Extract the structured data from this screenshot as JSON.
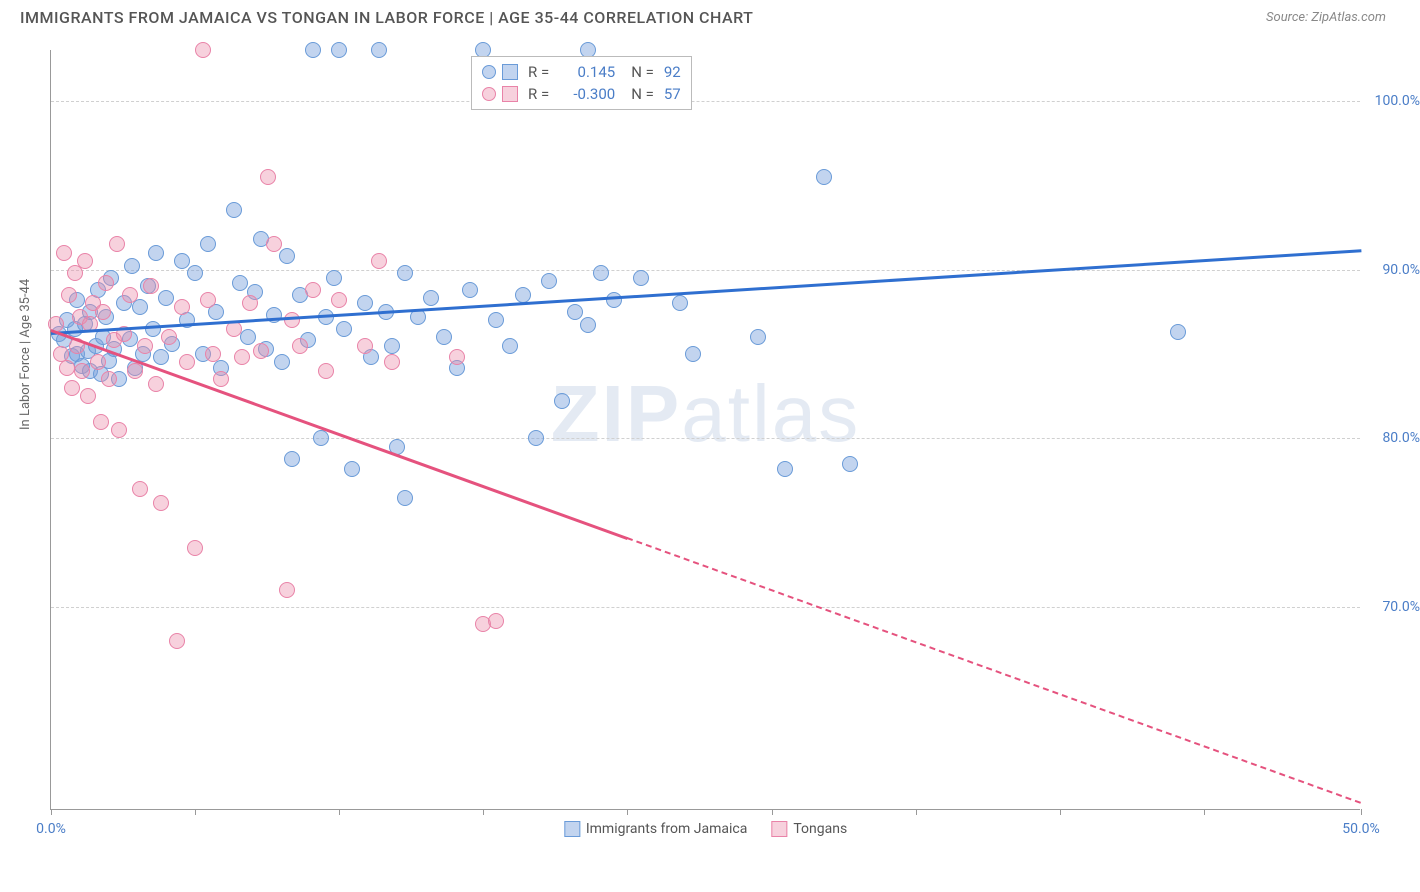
{
  "header": {
    "title": "IMMIGRANTS FROM JAMAICA VS TONGAN IN LABOR FORCE | AGE 35-44 CORRELATION CHART",
    "source": "Source: ZipAtlas.com"
  },
  "chart": {
    "type": "scatter",
    "y_axis_label": "In Labor Force | Age 35-44",
    "xlim": [
      0,
      50
    ],
    "ylim": [
      58,
      103
    ],
    "y_ticks": [
      70,
      80,
      90,
      100
    ],
    "y_tick_labels": [
      "70.0%",
      "80.0%",
      "90.0%",
      "100.0%"
    ],
    "x_ticks": [
      0,
      5.5,
      11,
      16.5,
      22,
      27.5,
      33,
      38.5,
      44,
      50
    ],
    "x_tick_labels_shown": {
      "0": "0.0%",
      "50": "50.0%"
    },
    "grid_color": "#d0d0d0",
    "background_color": "#ffffff",
    "axis_color": "#999999",
    "watermark": "ZIPatlas",
    "series": [
      {
        "name": "Immigrants from Jamaica",
        "marker_fill": "rgba(120,160,220,0.45)",
        "marker_stroke": "#6a9bd8",
        "trend_color": "#2f6fd0",
        "r_value": "0.145",
        "n_value": "92",
        "trend": {
          "x1": 0,
          "y1": 86.3,
          "x2": 50,
          "y2": 91.2,
          "dashed_from": null
        },
        "points": [
          [
            0.3,
            86.2
          ],
          [
            0.5,
            85.8
          ],
          [
            0.6,
            87.0
          ],
          [
            0.8,
            84.9
          ],
          [
            0.9,
            86.5
          ],
          [
            1.0,
            85.0
          ],
          [
            1.0,
            88.2
          ],
          [
            1.2,
            84.3
          ],
          [
            1.3,
            86.8
          ],
          [
            1.4,
            85.2
          ],
          [
            1.5,
            87.5
          ],
          [
            1.5,
            84.0
          ],
          [
            1.7,
            85.5
          ],
          [
            1.8,
            88.8
          ],
          [
            1.9,
            83.8
          ],
          [
            2.0,
            86.0
          ],
          [
            2.1,
            87.2
          ],
          [
            2.2,
            84.6
          ],
          [
            2.3,
            89.5
          ],
          [
            2.4,
            85.3
          ],
          [
            2.6,
            83.5
          ],
          [
            2.8,
            88.0
          ],
          [
            3.0,
            85.9
          ],
          [
            3.1,
            90.2
          ],
          [
            3.2,
            84.2
          ],
          [
            3.4,
            87.8
          ],
          [
            3.5,
            85.0
          ],
          [
            3.7,
            89.0
          ],
          [
            3.9,
            86.5
          ],
          [
            4.0,
            91.0
          ],
          [
            4.2,
            84.8
          ],
          [
            4.4,
            88.3
          ],
          [
            4.6,
            85.6
          ],
          [
            5.0,
            90.5
          ],
          [
            5.2,
            87.0
          ],
          [
            5.5,
            89.8
          ],
          [
            5.8,
            85.0
          ],
          [
            6.0,
            91.5
          ],
          [
            6.3,
            87.5
          ],
          [
            6.5,
            84.2
          ],
          [
            7.0,
            93.5
          ],
          [
            7.2,
            89.2
          ],
          [
            7.5,
            86.0
          ],
          [
            7.8,
            88.7
          ],
          [
            8.0,
            91.8
          ],
          [
            8.2,
            85.3
          ],
          [
            8.5,
            87.3
          ],
          [
            8.8,
            84.5
          ],
          [
            9.0,
            90.8
          ],
          [
            9.2,
            78.8
          ],
          [
            9.5,
            88.5
          ],
          [
            9.8,
            85.8
          ],
          [
            10.0,
            103.0
          ],
          [
            10.3,
            80.0
          ],
          [
            10.5,
            87.2
          ],
          [
            10.8,
            89.5
          ],
          [
            11.0,
            103.0
          ],
          [
            11.2,
            86.5
          ],
          [
            11.5,
            78.2
          ],
          [
            12.0,
            88.0
          ],
          [
            12.2,
            84.8
          ],
          [
            12.5,
            103.0
          ],
          [
            12.8,
            87.5
          ],
          [
            13.0,
            85.5
          ],
          [
            13.2,
            79.5
          ],
          [
            13.5,
            89.8
          ],
          [
            14.0,
            87.2
          ],
          [
            14.5,
            88.3
          ],
          [
            15.0,
            86.0
          ],
          [
            15.5,
            84.2
          ],
          [
            16.0,
            88.8
          ],
          [
            16.5,
            103.0
          ],
          [
            17.0,
            87.0
          ],
          [
            17.5,
            85.5
          ],
          [
            18.0,
            88.5
          ],
          [
            18.5,
            80.0
          ],
          [
            19.0,
            89.3
          ],
          [
            19.5,
            82.2
          ],
          [
            20.0,
            87.5
          ],
          [
            20.5,
            86.7
          ],
          [
            21.0,
            89.8
          ],
          [
            21.5,
            88.2
          ],
          [
            22.5,
            89.5
          ],
          [
            24.0,
            88.0
          ],
          [
            24.5,
            85.0
          ],
          [
            27.0,
            86.0
          ],
          [
            28.0,
            78.2
          ],
          [
            29.5,
            95.5
          ],
          [
            30.5,
            78.5
          ],
          [
            43.0,
            86.3
          ],
          [
            20.5,
            103.0
          ],
          [
            13.5,
            76.5
          ]
        ]
      },
      {
        "name": "Tongans",
        "marker_fill": "rgba(235,140,170,0.40)",
        "marker_stroke": "#e983a8",
        "trend_color": "#e5527e",
        "r_value": "-0.300",
        "n_value": "57",
        "trend": {
          "x1": 0,
          "y1": 86.5,
          "x2": 50,
          "y2": 58.5,
          "dashed_from": 22
        },
        "points": [
          [
            0.2,
            86.8
          ],
          [
            0.4,
            85.0
          ],
          [
            0.5,
            91.0
          ],
          [
            0.6,
            84.2
          ],
          [
            0.7,
            88.5
          ],
          [
            0.8,
            83.0
          ],
          [
            0.9,
            89.8
          ],
          [
            1.0,
            85.5
          ],
          [
            1.1,
            87.2
          ],
          [
            1.2,
            84.0
          ],
          [
            1.3,
            90.5
          ],
          [
            1.4,
            82.5
          ],
          [
            1.5,
            86.8
          ],
          [
            1.6,
            88.0
          ],
          [
            1.8,
            84.5
          ],
          [
            1.9,
            81.0
          ],
          [
            2.0,
            87.5
          ],
          [
            2.1,
            89.2
          ],
          [
            2.2,
            83.5
          ],
          [
            2.4,
            85.8
          ],
          [
            2.5,
            91.5
          ],
          [
            2.6,
            80.5
          ],
          [
            2.8,
            86.2
          ],
          [
            3.0,
            88.5
          ],
          [
            3.2,
            84.0
          ],
          [
            3.4,
            77.0
          ],
          [
            3.6,
            85.5
          ],
          [
            3.8,
            89.0
          ],
          [
            4.0,
            83.2
          ],
          [
            4.2,
            76.2
          ],
          [
            4.5,
            86.0
          ],
          [
            4.8,
            68.0
          ],
          [
            5.0,
            87.8
          ],
          [
            5.2,
            84.5
          ],
          [
            5.5,
            73.5
          ],
          [
            5.8,
            103.0
          ],
          [
            6.0,
            88.2
          ],
          [
            6.2,
            85.0
          ],
          [
            6.5,
            83.5
          ],
          [
            7.0,
            86.5
          ],
          [
            7.3,
            84.8
          ],
          [
            7.6,
            88.0
          ],
          [
            8.0,
            85.2
          ],
          [
            8.3,
            95.5
          ],
          [
            8.5,
            91.5
          ],
          [
            9.0,
            71.0
          ],
          [
            9.2,
            87.0
          ],
          [
            9.5,
            85.5
          ],
          [
            10.0,
            88.8
          ],
          [
            10.5,
            84.0
          ],
          [
            12.0,
            85.5
          ],
          [
            13.0,
            84.5
          ],
          [
            15.5,
            84.8
          ],
          [
            16.5,
            69.0
          ],
          [
            17.0,
            69.2
          ],
          [
            11.0,
            88.2
          ],
          [
            12.5,
            90.5
          ]
        ]
      }
    ]
  },
  "legend_labels": {
    "r_prefix": "R =",
    "n_prefix": "N ="
  }
}
